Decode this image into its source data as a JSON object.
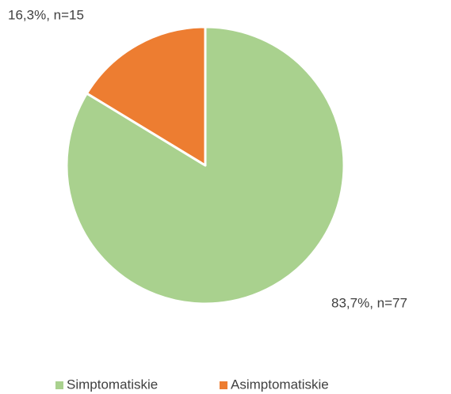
{
  "chart_data": {
    "type": "pie",
    "categories": [
      "Simptomatiskie",
      "Asimptomatiskie"
    ],
    "values": [
      83.7,
      16.3
    ],
    "value_labels": [
      "83,7%, n=77",
      "16,3%, n=15"
    ],
    "colors": [
      "#a9d18e",
      "#ed7d31"
    ],
    "legend": "bottom"
  }
}
